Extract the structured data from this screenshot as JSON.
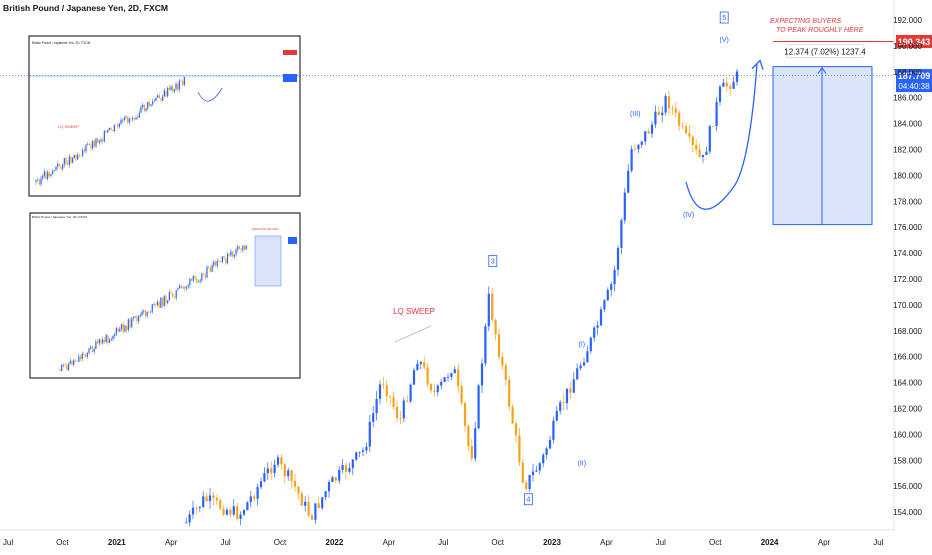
{
  "title": "British Pound / Japanese Yen, 2D, FXCM",
  "colors": {
    "up": "#2962ff",
    "down": "#f7a21b",
    "wave_label": "#2962ff",
    "annotation_red": "#e53935",
    "target_line": "#e53935",
    "price_line": "#2962ff",
    "projection_fill": "#dbe4fb",
    "projection_border": "#2962ff",
    "grid": "#f0f3fa",
    "axis_text": "#131722"
  },
  "chart_data": {
    "type": "candlestick",
    "title": "British Pound / Japanese Yen, 2D, FXCM",
    "x_ticks": [
      "Jul",
      "Oct",
      "2021",
      "Apr",
      "Jul",
      "Oct",
      "2022",
      "Apr",
      "Jul",
      "Oct",
      "2023",
      "Apr",
      "Jul",
      "Oct",
      "2024",
      "Apr",
      "Jul"
    ],
    "y_ticks": [
      154.0,
      156.0,
      158.0,
      160.0,
      162.0,
      164.0,
      166.0,
      168.0,
      170.0,
      172.0,
      174.0,
      176.0,
      178.0,
      180.0,
      182.0,
      184.0,
      186.0,
      188.0,
      190.0,
      192.0
    ],
    "ylim": [
      153.0,
      193.2
    ],
    "grid": false,
    "price_path": [
      {
        "date": "2021-05",
        "price": 153.2
      },
      {
        "date": "2021-06",
        "price": 155.0
      },
      {
        "date": "2021-08",
        "price": 153.8
      },
      {
        "date": "2021-10",
        "price": 158.0
      },
      {
        "date": "2021-11",
        "price": 156.2
      },
      {
        "date": "2021-12",
        "price": 153.6
      },
      {
        "date": "2022-01",
        "price": 156.0
      },
      {
        "date": "2022-03",
        "price": 158.8
      },
      {
        "date": "2022-04",
        "price": 164.4
      },
      {
        "date": "2022-05",
        "price": 161.0
      },
      {
        "date": "2022-06",
        "price": 166.0
      },
      {
        "date": "2022-07",
        "price": 163.0
      },
      {
        "date": "2022-08",
        "price": 165.4
      },
      {
        "date": "2022-09",
        "price": 158.0
      },
      {
        "date": "2022-10",
        "price": 170.5
      },
      {
        "date": "2022-11",
        "price": 163.5
      },
      {
        "date": "2022-12",
        "price": 156.0
      },
      {
        "date": "2023-01",
        "price": 158.0
      },
      {
        "date": "2023-02",
        "price": 162.0
      },
      {
        "date": "2023-03",
        "price": 165.0
      },
      {
        "date": "2023-04",
        "price": 168.0
      },
      {
        "date": "2023-05",
        "price": 172.0
      },
      {
        "date": "2023-06",
        "price": 182.0
      },
      {
        "date": "2023-07",
        "price": 183.5
      },
      {
        "date": "2023-08",
        "price": 186.0
      },
      {
        "date": "2023-09",
        "price": 183.0
      },
      {
        "date": "2023-10",
        "price": 181.0
      },
      {
        "date": "2023-11",
        "price": 186.5
      },
      {
        "date": "2023-12",
        "price": 187.7
      }
    ],
    "last_price": "187.709",
    "countdown": "04:40:38",
    "target_price": "190.343",
    "measure_label": "12.374 (7.02%) 1237.4",
    "annotations": {
      "lq_sweep": "LQ SWEEP",
      "expecting": [
        "EXPECTING BUYERS",
        "TO PEAK ROUGHLY HERE"
      ]
    },
    "wave_labels": [
      {
        "text": "3",
        "boxed": true,
        "date": "2022-10",
        "price": 173.2
      },
      {
        "text": "4",
        "boxed": true,
        "date": "2022-12",
        "price": 154.8
      },
      {
        "text": "(I)",
        "boxed": false,
        "date": "2023-03",
        "price": 166.8
      },
      {
        "text": "(II)",
        "boxed": false,
        "date": "2023-03",
        "price": 157.6
      },
      {
        "text": "(III)",
        "boxed": false,
        "date": "2023-06",
        "price": 184.6
      },
      {
        "text": "(IV)",
        "boxed": false,
        "date": "2023-09",
        "price": 176.8
      },
      {
        "text": "5",
        "boxed": true,
        "date": "2023-11",
        "price": 192.0
      },
      {
        "text": "(V)",
        "boxed": false,
        "date": "2023-11",
        "price": 190.3
      }
    ]
  },
  "insets": [
    {
      "title": "British Pound / Japanese Yen, 2D, FXCM",
      "annotation": "LQ SWEEP"
    },
    {
      "title": "British Pound / Japanese Yen, 2D, FXCM",
      "annotation": "EXPECTING BUYERS"
    }
  ]
}
